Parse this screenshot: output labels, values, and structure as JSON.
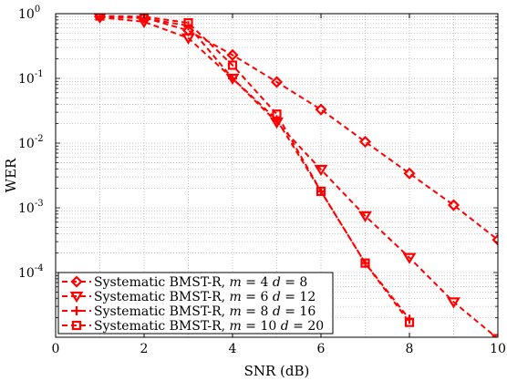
{
  "chart_data": {
    "type": "line",
    "title": "",
    "xlabel": "SNR (dB)",
    "ylabel": "WER",
    "xlim": [
      0,
      10
    ],
    "ylim": [
      1e-05,
      1
    ],
    "yscale": "log",
    "grid": true,
    "legend_position": "bottom-left",
    "xticks": [
      0,
      2,
      4,
      6,
      8,
      10
    ],
    "xtick_labels": [
      "0",
      "2",
      "4",
      "6",
      "8",
      "10"
    ],
    "yticks": [
      1,
      0.1,
      0.01,
      0.001,
      0.0001
    ],
    "ytick_labels": [
      {
        "base": "10",
        "exp": "0"
      },
      {
        "base": "10",
        "exp": "-1"
      },
      {
        "base": "10",
        "exp": "-2"
      },
      {
        "base": "10",
        "exp": "-3"
      },
      {
        "base": "10",
        "exp": "-4"
      }
    ],
    "series": [
      {
        "name": "Systematic BMST-R, m = 4 d = 8",
        "legend": {
          "prefix": "Systematic BMST-R, ",
          "m": "m",
          "m_val": " = 4 ",
          "d": "d",
          "d_val": " = 8"
        },
        "marker": "diamond",
        "color": "#ff0000",
        "x": [
          1,
          2,
          3,
          4,
          5,
          6,
          7,
          8,
          9,
          10
        ],
        "y": [
          0.9,
          0.87,
          0.55,
          0.23,
          0.088,
          0.033,
          0.0105,
          0.0034,
          0.0011,
          0.00032
        ]
      },
      {
        "name": "Systematic BMST-R, m = 6 d = 12",
        "legend": {
          "prefix": "Systematic BMST-R, ",
          "m": "m",
          "m_val": " = 6 ",
          "d": "d",
          "d_val": " = 12"
        },
        "marker": "triangle-down",
        "color": "#ff0000",
        "x": [
          1,
          2,
          3,
          4,
          5,
          6,
          7,
          8,
          9,
          10
        ],
        "y": [
          0.88,
          0.75,
          0.42,
          0.1,
          0.021,
          0.0039,
          0.00075,
          0.00017,
          3.5e-05,
          9.5e-06
        ]
      },
      {
        "name": "Systematic BMST-R, m = 8 d = 16",
        "legend": {
          "prefix": "Systematic BMST-R, ",
          "m": "m",
          "m_val": " = 8 ",
          "d": "d",
          "d_val": " = 16"
        },
        "marker": "plus",
        "color": "#ff0000",
        "x": [
          1,
          2,
          3,
          4,
          5,
          6,
          7,
          8
        ],
        "y": [
          0.9,
          0.85,
          0.65,
          0.1,
          0.023,
          0.0018,
          0.00014,
          1.9e-05
        ]
      },
      {
        "name": "Systematic BMST-R, m = 10 d = 20",
        "legend": {
          "prefix": "Systematic BMST-R, ",
          "m": "m",
          "m_val": " = 10 ",
          "d": "d",
          "d_val": " = 20"
        },
        "marker": "square",
        "color": "#ff0000",
        "x": [
          1,
          2,
          3,
          4,
          5,
          6,
          7,
          8
        ],
        "y": [
          0.92,
          0.9,
          0.72,
          0.16,
          0.028,
          0.0018,
          0.00014,
          1.7e-05
        ]
      }
    ]
  }
}
